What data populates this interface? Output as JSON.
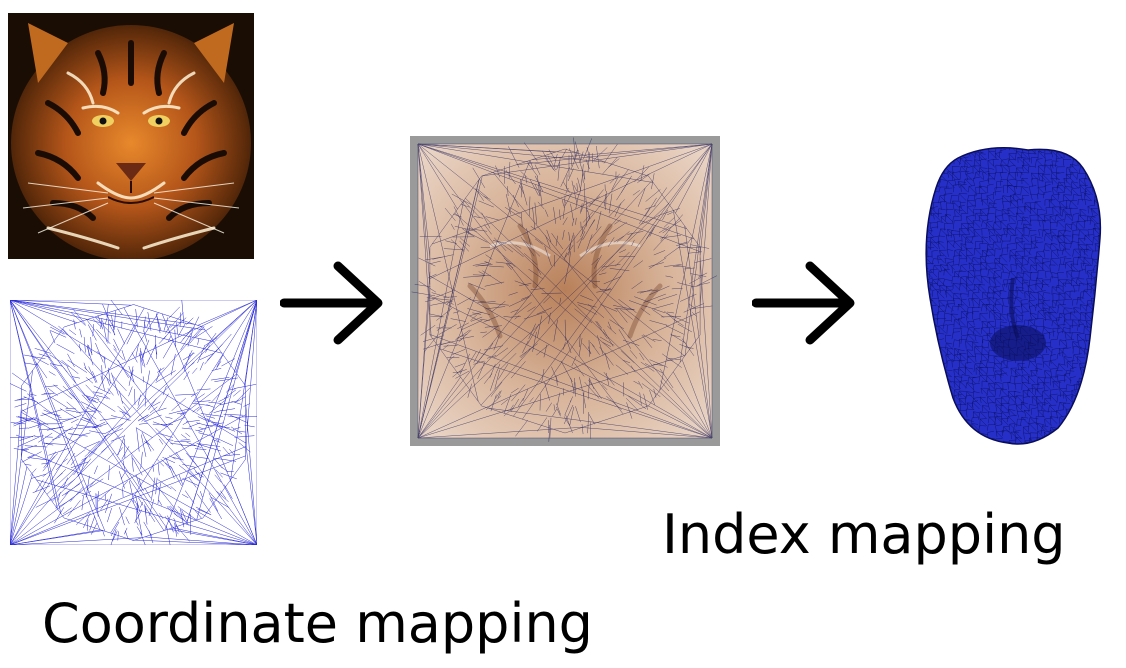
{
  "captions": {
    "coordinate_mapping": "Coordinate mapping",
    "index_mapping": "Index mapping"
  },
  "colors": {
    "mesh_blue": "#2a2ad6",
    "arrow": "#000000",
    "tiger_orange": "#c8651c",
    "tiger_dark": "#2a1406",
    "overlay_frame": "#9a9a9a"
  },
  "icons": {
    "arrow": "right-arrow-icon"
  }
}
